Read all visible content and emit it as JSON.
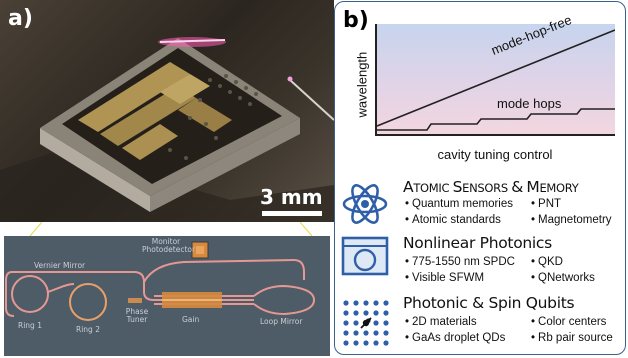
{
  "panel_a": {
    "label": "a)",
    "scale_bar": "3 mm",
    "schematic": {
      "monitor": "Monitor\nPhotodetector",
      "vernier": "Vernier Mirror",
      "ring1": "Ring 1",
      "ring2": "Ring 2",
      "phase_tuner": "Phase\nTuner",
      "gain": "Gain",
      "loop_mirror": "Loop Mirror"
    }
  },
  "panel_b": {
    "label": "b)",
    "plot": {
      "ylabel": "wavelength",
      "xlabel": "cavity tuning control",
      "line_label": "mode-hop-free",
      "step_label": "mode hops"
    },
    "applications": [
      {
        "icon": "atom-icon",
        "title_big": [
          "A",
          "S",
          "&",
          "M"
        ],
        "title_small": [
          "TOMIC ",
          "ENSORS ",
          " ",
          "EMORY"
        ],
        "title": "Atomic Sensors & Memory",
        "bullets": [
          "Quantum memories",
          "PNT",
          "Atomic standards",
          "Magnetometry"
        ]
      },
      {
        "icon": "crystal-icon",
        "title": "Nonlinear Photonics",
        "bullets": [
          "775-1550 nm SPDC",
          "QKD",
          "Visible SFWM",
          "QNetworks"
        ]
      },
      {
        "icon": "qubit-array-icon",
        "title": "Photonic & Spin Qubits",
        "bullets": [
          "2D materials",
          "Color centers",
          "GaAs droplet QDs",
          "Rb pair source"
        ]
      }
    ]
  },
  "colors": {
    "frame": "#3b5f8f",
    "icon_blue": "#2f5fa8",
    "waveguide": "#e59893",
    "gain": "#d7893e"
  }
}
